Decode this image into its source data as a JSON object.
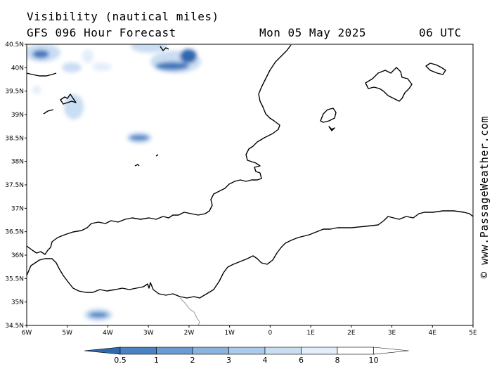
{
  "header": {
    "title": "Visibility (nautical miles)",
    "subtitle": "GFS 096 Hour Forecast",
    "date": "Mon 05 May 2025",
    "time": "06 UTC"
  },
  "credit": "© www.PassageWeather.com",
  "map": {
    "lat_ticks": [
      {
        "label": "40.5N",
        "value": 40.5
      },
      {
        "label": "40N",
        "value": 40
      },
      {
        "label": "39.5N",
        "value": 39.5
      },
      {
        "label": "39N",
        "value": 39
      },
      {
        "label": "38.5N",
        "value": 38.5
      },
      {
        "label": "38N",
        "value": 38
      },
      {
        "label": "37.5N",
        "value": 37.5
      },
      {
        "label": "37N",
        "value": 37
      },
      {
        "label": "36.5N",
        "value": 36.5
      },
      {
        "label": "36N",
        "value": 36
      },
      {
        "label": "35.5N",
        "value": 35.5
      },
      {
        "label": "35N",
        "value": 35
      },
      {
        "label": "34.5N",
        "value": 34.5
      }
    ],
    "lon_ticks": [
      {
        "label": "6W",
        "value": -6
      },
      {
        "label": "5W",
        "value": -5
      },
      {
        "label": "4W",
        "value": -4
      },
      {
        "label": "3W",
        "value": -3
      },
      {
        "label": "2W",
        "value": -2
      },
      {
        "label": "1W",
        "value": -1
      },
      {
        "label": "0",
        "value": 0
      },
      {
        "label": "1E",
        "value": 1
      },
      {
        "label": "2E",
        "value": 2
      },
      {
        "label": "3E",
        "value": 3
      },
      {
        "label": "4E",
        "value": 4
      },
      {
        "label": "5E",
        "value": 5
      }
    ],
    "lat_range": [
      34.5,
      40.5
    ],
    "lon_range": [
      -6,
      5
    ]
  },
  "legend": {
    "labels": [
      "0.5",
      "1",
      "2",
      "3",
      "4",
      "6",
      "8",
      "10"
    ],
    "colors": [
      "#2f68b0",
      "#4a82c4",
      "#6a9bd3",
      "#8ab4e0",
      "#aac9eb",
      "#c9ddf3",
      "#e4eefa",
      "#ffffff"
    ]
  }
}
